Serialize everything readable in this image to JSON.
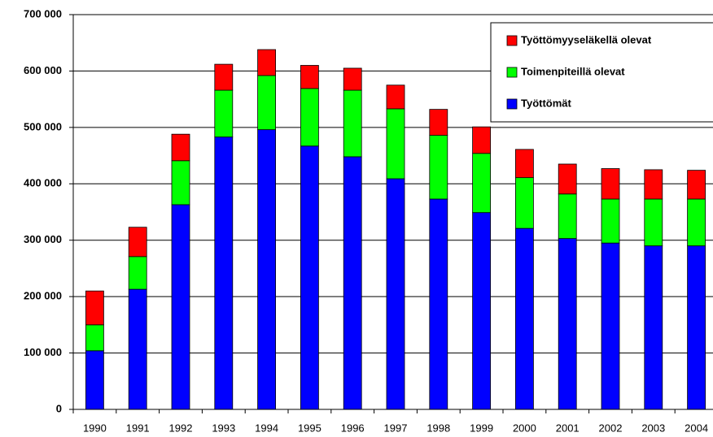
{
  "chart_data": {
    "type": "stacked_bar",
    "categories": [
      "1990",
      "1991",
      "1992",
      "1993",
      "1994",
      "1995",
      "1996",
      "1997",
      "1998",
      "1999",
      "2000",
      "2001",
      "2002",
      "2003",
      "2004"
    ],
    "series": [
      {
        "name": "Työttömät",
        "color": "#0000ff",
        "values": [
          104000,
          213000,
          363000,
          483000,
          496000,
          467000,
          448000,
          409000,
          373000,
          349000,
          321000,
          303000,
          295000,
          290000,
          290000
        ]
      },
      {
        "name": "Toimenpiteillä olevat",
        "color": "#00ff00",
        "values": [
          46000,
          58000,
          78000,
          83000,
          96000,
          102000,
          118000,
          124000,
          113000,
          105000,
          90000,
          79000,
          78000,
          83000,
          83000
        ]
      },
      {
        "name": "Työttömyyseläkellä olevat",
        "color": "#ff0000",
        "values": [
          60000,
          52000,
          47000,
          46000,
          46000,
          41000,
          39000,
          42000,
          46000,
          47000,
          50000,
          53000,
          54000,
          52000,
          51000
        ]
      }
    ],
    "ylim": [
      0,
      700000
    ],
    "yticks": [
      0,
      {
        "value": 100000,
        "label": "100 000"
      },
      {
        "value": 200000,
        "label": "200 000"
      },
      {
        "value": 300000,
        "label": "300 000"
      },
      {
        "value": 400000,
        "label": "400 000"
      },
      {
        "value": 500000,
        "label": "500 000"
      },
      {
        "value": 600000,
        "label": "600 000"
      },
      {
        "value": 700000,
        "label": "700 000"
      }
    ],
    "grid": true
  }
}
